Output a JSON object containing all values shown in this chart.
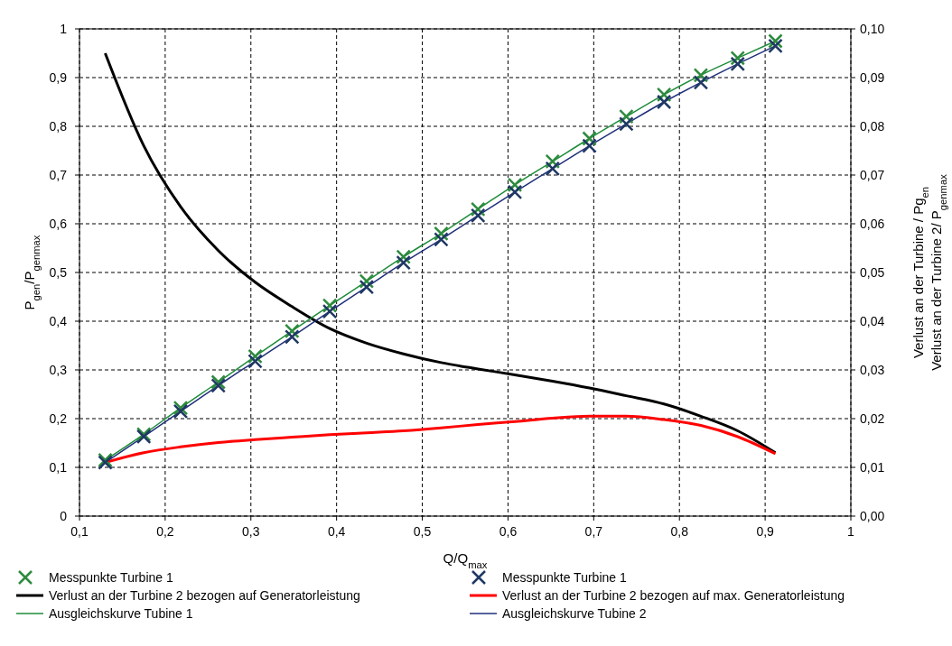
{
  "chart_data": {
    "type": "scatter",
    "xlabel": "Q/Q$_{max}$",
    "ylabel": "P$_{gen}$/P$_{genmax}$",
    "y2label": "Verlust an der Turbine / Pg$_{en}$\nVerlust an der Turbine 2/ P$_{genmax}$",
    "xlim": [
      0.1,
      1
    ],
    "xticks": [
      {
        "value": 0.1,
        "label": "0,1"
      },
      {
        "value": 0.2,
        "label": "0,2"
      },
      {
        "value": 0.3,
        "label": "0,3"
      },
      {
        "value": 0.4,
        "label": "0,4"
      },
      {
        "value": 0.5,
        "label": "0,5"
      },
      {
        "value": 0.6,
        "label": "0,6"
      },
      {
        "value": 0.7,
        "label": "0,7"
      },
      {
        "value": 0.8,
        "label": "0,8"
      },
      {
        "value": 0.9,
        "label": "0,9"
      },
      1
    ],
    "ylim": [
      0,
      1
    ],
    "yticks": [
      0,
      {
        "value": 0.1,
        "label": "0,1"
      },
      {
        "value": 0.2,
        "label": "0,2"
      },
      {
        "value": 0.3,
        "label": "0,3"
      },
      {
        "value": 0.4,
        "label": "0,4"
      },
      {
        "value": 0.5,
        "label": "0,5"
      },
      {
        "value": 0.6,
        "label": "0,6"
      },
      {
        "value": 0.7,
        "label": "0,7"
      },
      {
        "value": 0.8,
        "label": "0,8"
      },
      {
        "value": 0.9,
        "label": "0,9"
      },
      1
    ],
    "y2lim": [
      0,
      0.1
    ],
    "y2ticks": [
      {
        "value": 0,
        "label": "0,00"
      },
      {
        "value": 0.01,
        "label": "0,01"
      },
      {
        "value": 0.02,
        "label": "0,02"
      },
      {
        "value": 0.03,
        "label": "0,03"
      },
      {
        "value": 0.04,
        "label": "0,04"
      },
      {
        "value": 0.05,
        "label": "0,05"
      },
      {
        "value": 0.06,
        "label": "0,06"
      },
      {
        "value": 0.07,
        "label": "0,07"
      },
      {
        "value": 0.08,
        "label": "0,08"
      },
      {
        "value": 0.09,
        "label": "0,09"
      },
      {
        "value": 0.1,
        "label": "0,10"
      }
    ],
    "grid": true,
    "legend": "bottom",
    "x": [
      0.13,
      0.175,
      0.218,
      0.262,
      0.305,
      0.348,
      0.392,
      0.435,
      0.478,
      0.522,
      0.565,
      0.608,
      0.652,
      0.695,
      0.738,
      0.782,
      0.825,
      0.868,
      0.912
    ],
    "series": [
      {
        "name": "Messpunkte Turbine 1",
        "marker": "cross",
        "color": "#2e8b3e",
        "values": [
          0.115,
          0.168,
          0.222,
          0.275,
          0.328,
          0.38,
          0.432,
          0.482,
          0.532,
          0.58,
          0.63,
          0.68,
          0.728,
          0.775,
          0.82,
          0.865,
          0.905,
          0.94,
          0.975
        ]
      },
      {
        "name": "Messpunkte Turbine 1",
        "marker": "cross",
        "color": "#1f3864",
        "values": [
          0.11,
          0.163,
          0.215,
          0.268,
          0.318,
          0.368,
          0.42,
          0.47,
          0.52,
          0.568,
          0.617,
          0.665,
          0.713,
          0.76,
          0.805,
          0.85,
          0.89,
          0.928,
          0.965
        ]
      },
      {
        "name": "Verlust an der Turbine 2 bezogen auf Generatorleistung",
        "type": "line",
        "axis": "y2",
        "color": "#000000",
        "values": [
          0.095,
          0.076,
          0.0635,
          0.0545,
          0.048,
          0.043,
          0.0385,
          0.0355,
          0.0333,
          0.0315,
          0.0302,
          0.029,
          0.0277,
          0.0263,
          0.0247,
          0.023,
          0.0205,
          0.0175,
          0.013
        ]
      },
      {
        "name": "Verlust an der Turbine 2 bezogen auf max. Generatorleistung",
        "type": "line",
        "axis": "y2",
        "color": "#ff0000",
        "values": [
          0.011,
          0.013,
          0.0142,
          0.0151,
          0.0157,
          0.0162,
          0.0167,
          0.0171,
          0.0175,
          0.0181,
          0.0188,
          0.0194,
          0.0201,
          0.0205,
          0.0205,
          0.0198,
          0.0186,
          0.0163,
          0.0128
        ]
      },
      {
        "name": "Ausgleichskurve Tubine 1",
        "type": "line",
        "color": "#1e8c3a",
        "values": [
          0.115,
          0.168,
          0.222,
          0.275,
          0.328,
          0.38,
          0.432,
          0.482,
          0.532,
          0.58,
          0.63,
          0.68,
          0.728,
          0.775,
          0.82,
          0.865,
          0.905,
          0.94,
          0.975
        ]
      },
      {
        "name": "Ausgleichskurve Tubine 2",
        "type": "line",
        "color": "#1f2f7a",
        "values": [
          0.11,
          0.163,
          0.215,
          0.268,
          0.318,
          0.368,
          0.42,
          0.47,
          0.52,
          0.568,
          0.617,
          0.665,
          0.713,
          0.76,
          0.805,
          0.85,
          0.89,
          0.928,
          0.965
        ]
      }
    ]
  }
}
